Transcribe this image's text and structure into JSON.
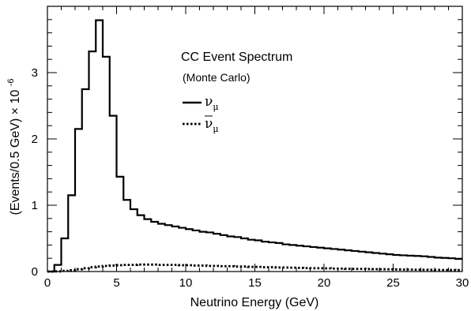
{
  "chart_data": {
    "type": "line",
    "subtype": "step-histogram",
    "xlabel": "Neutrino Energy (GeV)",
    "ylabel": "(Events/0.5 GeV) × 10",
    "ylabel_exponent": "-6",
    "xlim": [
      0,
      30
    ],
    "ylim": [
      0,
      4.0
    ],
    "x_ticks": [
      0,
      5,
      10,
      15,
      20,
      25,
      30
    ],
    "x_tick_labels": [
      "0",
      "5",
      "10",
      "15",
      "20",
      "25",
      "30"
    ],
    "y_ticks": [
      0,
      1,
      2,
      3
    ],
    "y_tick_labels": [
      "0",
      "1",
      "2",
      "3"
    ],
    "bin_width": 0.5,
    "bin_edges_start": 0,
    "grid": false,
    "legend": {
      "placement": "upper-right",
      "title": "CC Event Spectrum",
      "subtitle": "(Monte Carlo)",
      "entries": [
        {
          "symbol": "ν",
          "subscript": "μ",
          "bar": false,
          "style": "solid"
        },
        {
          "symbol": "ν",
          "subscript": "μ",
          "bar": true,
          "style": "dotted"
        }
      ]
    },
    "series": [
      {
        "style": "solid",
        "values": [
          0.0,
          0.1,
          0.5,
          1.15,
          2.15,
          2.75,
          3.32,
          3.79,
          3.24,
          2.35,
          1.43,
          1.08,
          0.94,
          0.85,
          0.79,
          0.75,
          0.72,
          0.7,
          0.68,
          0.66,
          0.64,
          0.62,
          0.6,
          0.59,
          0.57,
          0.55,
          0.53,
          0.52,
          0.5,
          0.48,
          0.47,
          0.45,
          0.44,
          0.43,
          0.41,
          0.4,
          0.39,
          0.38,
          0.37,
          0.36,
          0.35,
          0.34,
          0.33,
          0.32,
          0.31,
          0.3,
          0.29,
          0.28,
          0.27,
          0.26,
          0.25,
          0.245,
          0.24,
          0.235,
          0.23,
          0.22,
          0.21,
          0.205,
          0.2,
          0.19
        ]
      },
      {
        "style": "dotted",
        "values": [
          0.0,
          0.002,
          0.01,
          0.02,
          0.035,
          0.05,
          0.065,
          0.075,
          0.085,
          0.09,
          0.095,
          0.1,
          0.1,
          0.105,
          0.105,
          0.105,
          0.1,
          0.1,
          0.1,
          0.095,
          0.095,
          0.09,
          0.09,
          0.085,
          0.085,
          0.08,
          0.08,
          0.075,
          0.075,
          0.07,
          0.07,
          0.065,
          0.065,
          0.06,
          0.06,
          0.058,
          0.055,
          0.052,
          0.05,
          0.05,
          0.048,
          0.045,
          0.045,
          0.042,
          0.04,
          0.04,
          0.038,
          0.036,
          0.035,
          0.034,
          0.032,
          0.03,
          0.03,
          0.028,
          0.027,
          0.026,
          0.025,
          0.024,
          0.023,
          0.022
        ]
      }
    ]
  }
}
